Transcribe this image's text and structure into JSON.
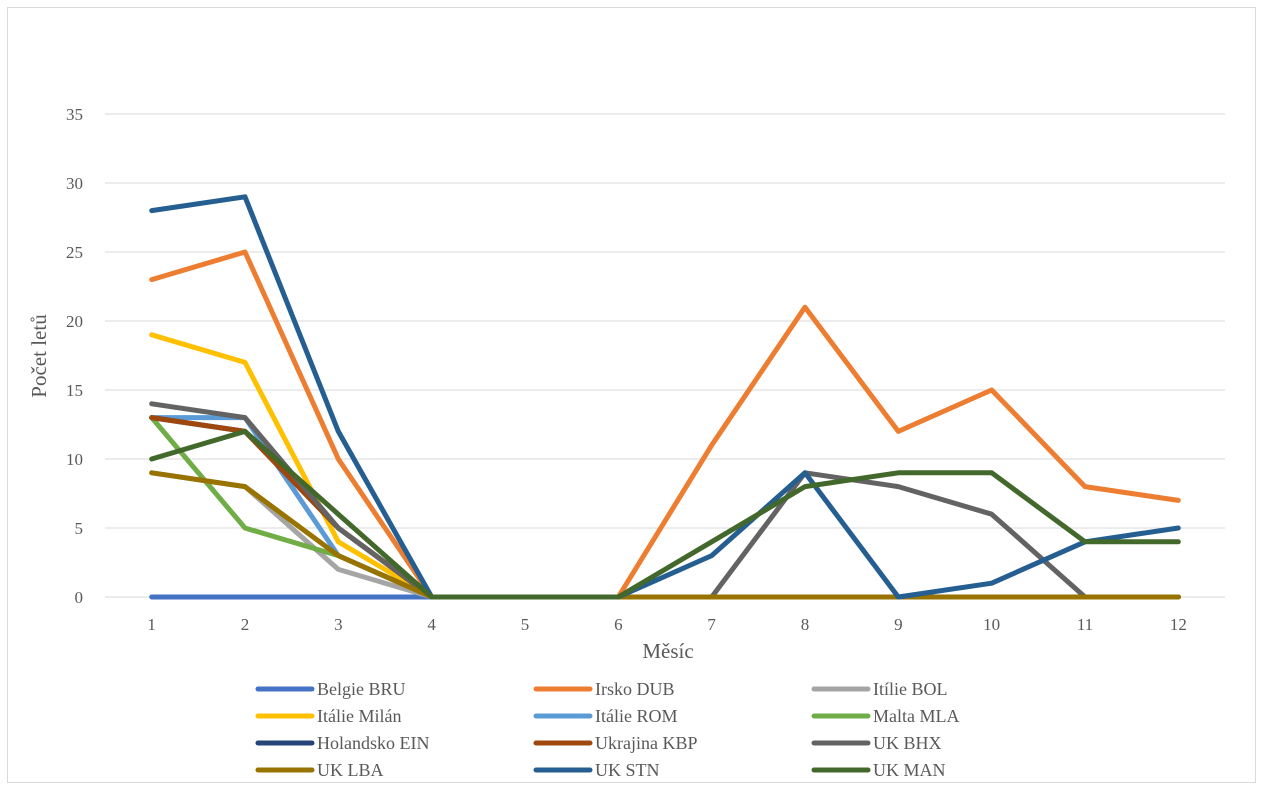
{
  "chart_data": {
    "type": "line",
    "title": "",
    "xlabel": "Měsíc",
    "ylabel": "Počet letů",
    "ylim": [
      0,
      35
    ],
    "yticks": [
      0,
      5,
      10,
      15,
      20,
      25,
      30,
      35
    ],
    "grid": "horizontal",
    "legend": "bottom",
    "x": [
      1,
      2,
      3,
      4,
      5,
      6,
      7,
      8,
      9,
      10,
      11,
      12
    ],
    "series": [
      {
        "name": "Belgie BRU",
        "color": "#4472c4",
        "values": [
          0,
          0,
          0,
          0,
          0,
          0,
          0,
          0,
          0,
          0,
          0,
          0
        ]
      },
      {
        "name": "Irsko DUB",
        "color": "#ed7d31",
        "values": [
          23,
          25,
          10,
          0,
          0,
          0,
          11,
          21,
          12,
          15,
          8,
          7
        ]
      },
      {
        "name": "Itílie BOL",
        "color": "#a5a5a5",
        "values": [
          9,
          8,
          2,
          0,
          0,
          0,
          0,
          0,
          0,
          0,
          0,
          0
        ]
      },
      {
        "name": "Itálie Milán",
        "color": "#ffc000",
        "values": [
          19,
          17,
          4,
          0,
          0,
          0,
          0,
          0,
          0,
          0,
          0,
          0
        ]
      },
      {
        "name": "Itálie ROM",
        "color": "#5b9bd5",
        "values": [
          13,
          13,
          3,
          0,
          0,
          0,
          0,
          0,
          0,
          0,
          0,
          0
        ]
      },
      {
        "name": "Malta MLA",
        "color": "#70ad47",
        "values": [
          13,
          5,
          3,
          0,
          0,
          0,
          0,
          0,
          0,
          0,
          0,
          0
        ]
      },
      {
        "name": "Holandsko EIN",
        "color": "#264478",
        "values": [
          13,
          12,
          5,
          0,
          0,
          0,
          0,
          0,
          0,
          0,
          0,
          0
        ]
      },
      {
        "name": "Ukrajina KBP",
        "color": "#9e480e",
        "values": [
          13,
          12,
          5,
          0,
          0,
          0,
          0,
          0,
          0,
          0,
          0,
          0
        ]
      },
      {
        "name": "UK BHX",
        "color": "#636363",
        "values": [
          14,
          13,
          5,
          0,
          0,
          0,
          0,
          9,
          8,
          6,
          0,
          0
        ]
      },
      {
        "name": "UK LBA",
        "color": "#997300",
        "values": [
          9,
          8,
          3,
          0,
          0,
          0,
          0,
          0,
          0,
          0,
          0,
          0
        ]
      },
      {
        "name": "UK STN",
        "color": "#255e91",
        "values": [
          28,
          29,
          12,
          0,
          0,
          0,
          3,
          9,
          0,
          1,
          4,
          5
        ]
      },
      {
        "name": "UK MAN",
        "color": "#43682b",
        "values": [
          10,
          12,
          6,
          0,
          0,
          0,
          4,
          8,
          9,
          9,
          4,
          4
        ]
      }
    ]
  }
}
